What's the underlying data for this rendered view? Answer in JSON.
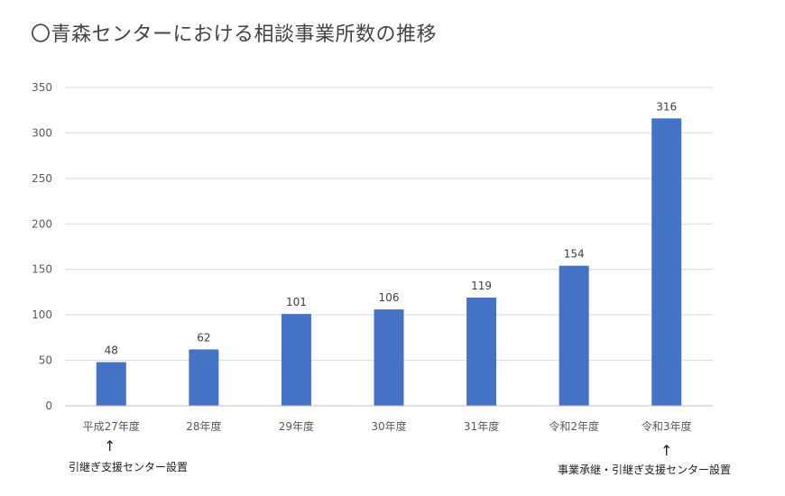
{
  "title": "〇青森センターにおける相談事業所数の推移",
  "chart_data": {
    "type": "bar",
    "title": "〇青森センターにおける相談事業所数の推移",
    "categories": [
      "平成27年度",
      "28年度",
      "29年度",
      "30年度",
      "31年度",
      "令和2年度",
      "令和3年度"
    ],
    "values": [
      48,
      62,
      101,
      106,
      119,
      154,
      316
    ],
    "ylim": [
      0,
      350
    ],
    "yticks": [
      0,
      50,
      100,
      150,
      200,
      250,
      300,
      350
    ],
    "grid": true,
    "bar_color": "#4472C4"
  },
  "annotations": {
    "arrow_symbol": "↑",
    "left_note": "引継ぎ支援センター設置",
    "right_note": "事業承継・引継ぎ支援センター設置"
  }
}
